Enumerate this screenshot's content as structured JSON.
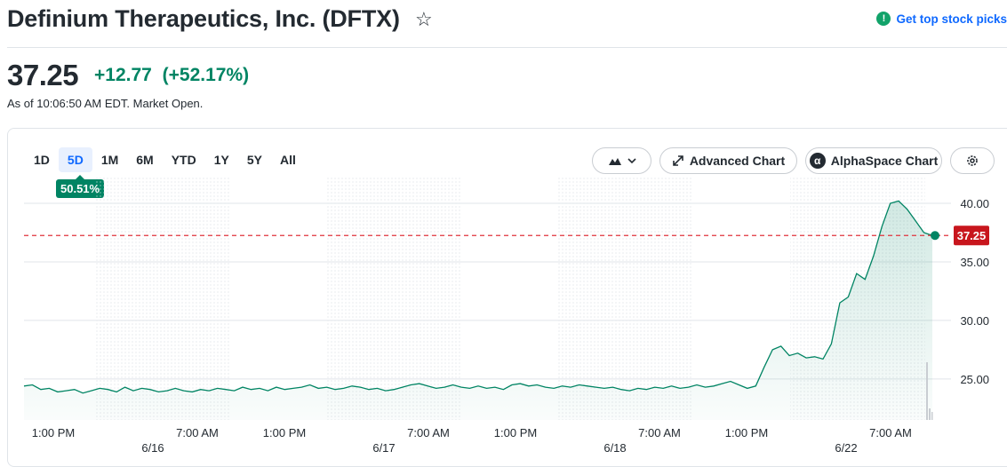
{
  "header": {
    "title": "Definium Therapeutics, Inc. (DFTX)",
    "star_icon": "star-outline-icon",
    "top_picks_label": "Get top stock picks"
  },
  "quote": {
    "price": "37.25",
    "change": "+12.77",
    "change_pct": "(+52.17%)",
    "as_of": "As of 10:06:50 AM EDT. Market Open.",
    "positive_color": "#008463"
  },
  "controls": {
    "tabs": [
      {
        "label": "1D"
      },
      {
        "label": "5D"
      },
      {
        "label": "1M"
      },
      {
        "label": "6M"
      },
      {
        "label": "YTD"
      },
      {
        "label": "1Y"
      },
      {
        "label": "5Y"
      },
      {
        "label": "All"
      }
    ],
    "active_tab": "5D",
    "period_return": "50.51%",
    "chart_type_icon": "mountain-chart-icon",
    "advanced_chart_label": "Advanced Chart",
    "alphaspace_label": "AlphaSpace Chart",
    "settings_icon": "gear-icon"
  },
  "chart_data": {
    "type": "area",
    "y_ticks": [
      "40.00",
      "35.00",
      "30.00",
      "25.00"
    ],
    "x_time_labels": [
      "1:00 PM",
      "7:00 AM",
      "1:00 PM",
      "7:00 AM",
      "1:00 PM",
      "7:00 AM",
      "1:00 PM",
      "7:00 AM"
    ],
    "x_date_labels": [
      "6/16",
      "6/17",
      "6/18",
      "6/22"
    ],
    "current_value_label": "37.25",
    "current_value": 37.25,
    "ylim": [
      21.5,
      42
    ],
    "line_color": "#008463",
    "reference_line_color": "#e0323b",
    "series": [
      {
        "values": [
          24.4,
          24.5,
          24.1,
          24.2,
          23.9,
          24.0,
          24.1,
          23.8,
          24.0,
          24.2,
          24.1,
          23.9,
          24.3,
          24.0,
          24.2,
          24.1,
          23.9,
          24.0,
          24.2,
          24.0,
          23.9,
          24.1,
          24.0,
          24.2,
          24.1,
          24.0,
          24.3,
          24.1,
          24.2,
          24.0,
          24.3,
          24.1,
          24.2,
          24.3,
          24.5,
          24.2,
          24.3,
          24.1,
          24.2,
          24.4,
          24.3,
          24.1,
          24.2,
          24.0,
          24.1,
          24.3,
          24.5,
          24.6,
          24.4,
          24.2,
          24.3,
          24.5,
          24.3,
          24.2,
          24.4,
          24.2,
          24.3,
          24.1,
          24.5,
          24.6,
          24.4,
          24.5,
          24.3,
          24.2,
          24.4,
          24.3,
          24.5,
          24.4,
          24.3,
          24.2,
          24.3,
          24.1,
          24.0,
          24.2,
          24.1,
          24.3,
          24.2,
          24.4,
          24.2,
          24.3,
          24.5,
          24.3,
          24.4,
          24.6,
          24.8,
          24.5,
          24.2,
          24.4,
          26.0,
          27.5,
          27.8,
          27.0,
          27.2,
          26.8,
          26.9,
          26.7,
          28.0,
          31.5,
          32.0,
          34.0,
          33.5,
          35.5,
          38.0,
          40.0,
          40.2,
          39.5,
          38.5,
          37.5,
          37.25
        ]
      }
    ]
  }
}
